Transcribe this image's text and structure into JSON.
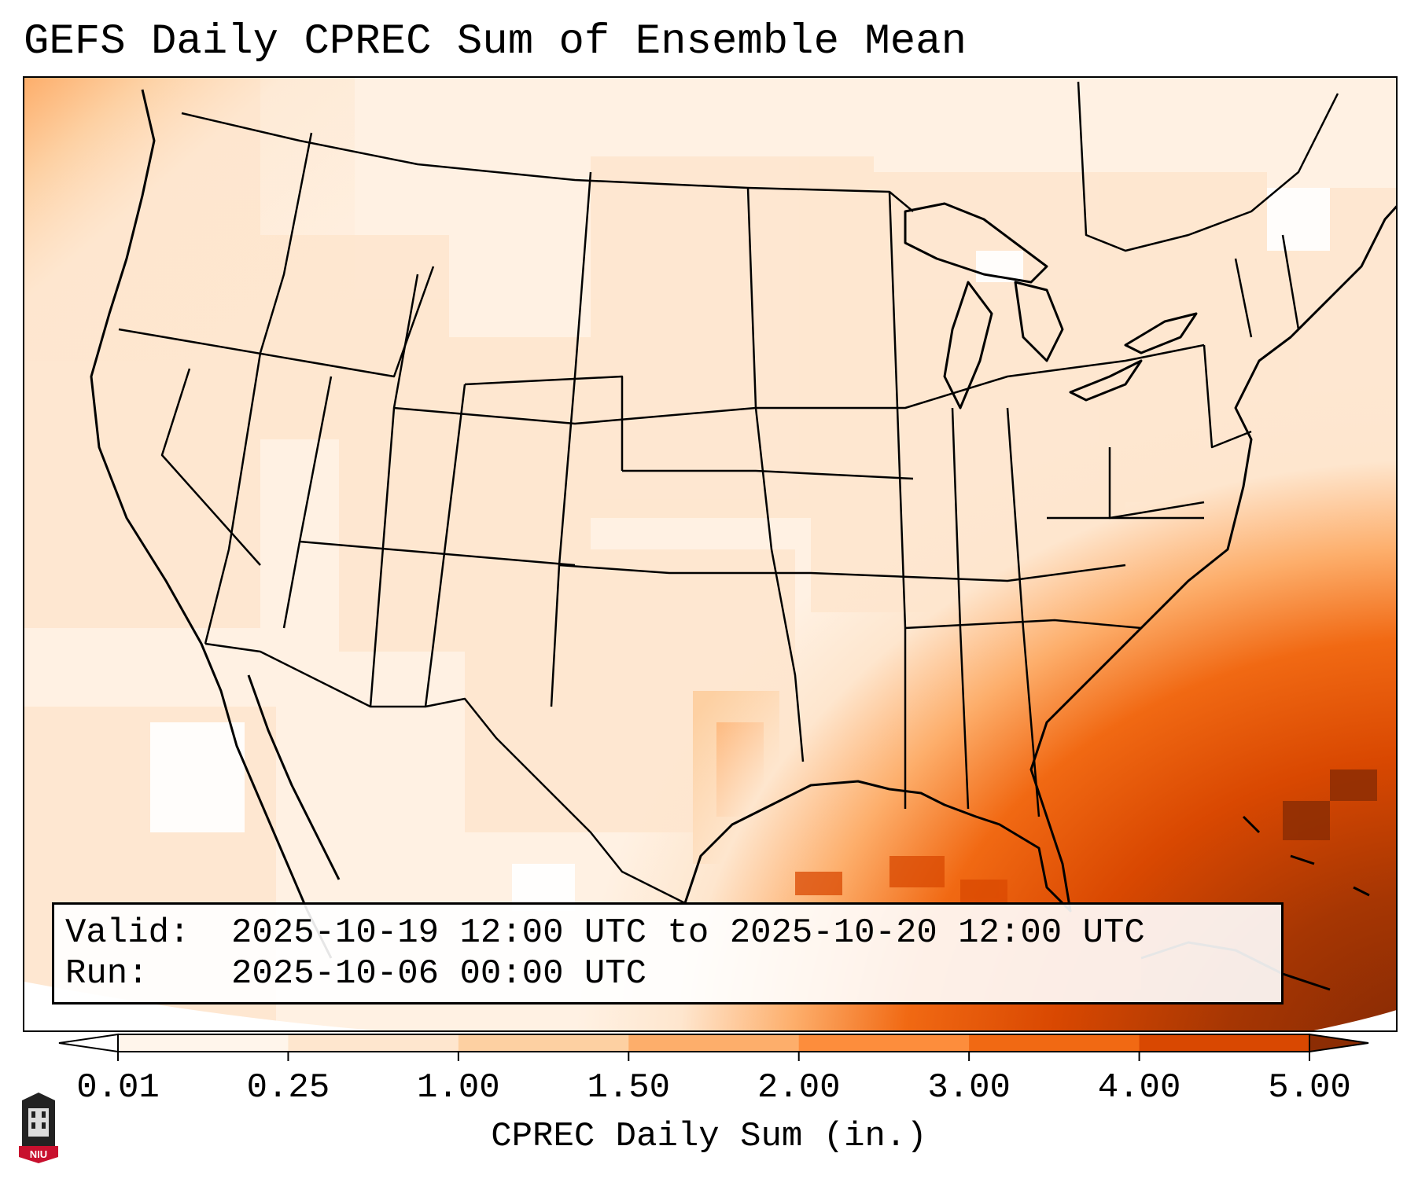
{
  "title": "GEFS Daily CPREC Sum of Ensemble Mean",
  "info": {
    "valid_label": "Valid:",
    "valid_value": "2025-10-19 12:00 UTC to 2025-10-20 12:00 UTC",
    "run_label": "Run:",
    "run_value": "2025-10-06 00:00 UTC"
  },
  "colorbar": {
    "label": "CPREC Daily Sum (in.)",
    "ticks": [
      "0.01",
      "0.25",
      "1.00",
      "1.50",
      "2.00",
      "3.00",
      "4.00",
      "5.00"
    ],
    "colors": [
      "#fff5eb",
      "#fee6ce",
      "#fdd0a2",
      "#fdae6b",
      "#fd8d3c",
      "#f16913",
      "#d94801",
      "#8c2d04"
    ],
    "under_color": "#ffffff",
    "over_color": "#7f2704"
  },
  "map": {
    "region": "CONUS",
    "heavy_area": "Gulf of Mexico / Western Atlantic / Caribbean"
  },
  "logo": {
    "text": "NIU",
    "name": "Northern Illinois University"
  }
}
